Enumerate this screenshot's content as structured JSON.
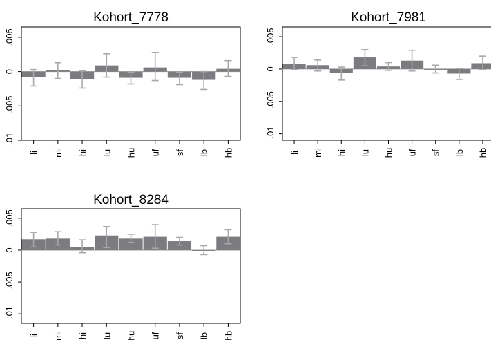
{
  "colors": {
    "bar": "#7b7b80",
    "error_bar": "#a8a8a8",
    "zero_line": "#9a9a9a",
    "axis": "#000000"
  },
  "chart_data": [
    {
      "type": "bar",
      "title": "Kohort_7778",
      "categories": [
        "li",
        "mi",
        "hi",
        "lu",
        "hu",
        "uf",
        "sf",
        "lb",
        "hb"
      ],
      "values": [
        -0.0008,
        0.0002,
        -0.0011,
        0.0009,
        -0.0009,
        0.0006,
        -0.0009,
        -0.0012,
        0.0004
      ],
      "ci_low": [
        -0.0021,
        -0.001,
        -0.0024,
        -0.0008,
        -0.0018,
        -0.0013,
        -0.0019,
        -0.0026,
        -0.0007
      ],
      "ci_high": [
        0.0003,
        0.0013,
        0.0001,
        0.0026,
        -0.0001,
        0.0028,
        -0.0001,
        0.0,
        0.0016
      ],
      "ylim": [
        -0.01,
        0.0065
      ],
      "yticks": [
        0.005,
        0,
        -0.005,
        -0.01
      ],
      "ytick_labels": [
        ".005",
        "0",
        "-.005",
        "-.01"
      ],
      "grid": false
    },
    {
      "type": "bar",
      "title": "Kohort_7981",
      "categories": [
        "li",
        "mi",
        "hi",
        "lu",
        "hu",
        "uf",
        "sf",
        "lb",
        "hb"
      ],
      "values": [
        0.0008,
        0.0006,
        -0.0006,
        0.0018,
        0.0004,
        0.0013,
        0.0,
        -0.0007,
        0.0009
      ],
      "ci_low": [
        -0.0001,
        -0.0003,
        -0.0017,
        0.0005,
        -0.0002,
        -0.0003,
        -0.0006,
        -0.0016,
        -0.0001
      ],
      "ci_high": [
        0.0018,
        0.0014,
        0.0003,
        0.003,
        0.001,
        0.0029,
        0.0006,
        0.0001,
        0.002
      ],
      "ylim": [
        -0.011,
        0.0065
      ],
      "yticks": [
        0.005,
        0,
        -0.005,
        -0.01
      ],
      "ytick_labels": [
        ".005",
        "0",
        "-.005",
        "-.01"
      ],
      "grid": false
    },
    {
      "type": "bar",
      "title": "Kohort_8284",
      "categories": [
        "li",
        "mi",
        "hi",
        "lu",
        "hu",
        "uf",
        "sf",
        "lb",
        "hb"
      ],
      "values": [
        0.0017,
        0.0018,
        0.0005,
        0.0023,
        0.0018,
        0.0021,
        0.0014,
        -0.0001,
        0.0021
      ],
      "ci_low": [
        0.0005,
        0.0008,
        -0.0004,
        0.0004,
        0.0012,
        0.0003,
        0.0008,
        -0.0007,
        0.001
      ],
      "ci_high": [
        0.0028,
        0.0029,
        0.0016,
        0.0037,
        0.0025,
        0.004,
        0.002,
        0.0007,
        0.0032
      ],
      "ylim": [
        -0.0115,
        0.0065
      ],
      "yticks": [
        0.005,
        0,
        -0.005,
        -0.01
      ],
      "ytick_labels": [
        ".005",
        "0",
        "-.005",
        "-.01"
      ],
      "grid": false
    }
  ]
}
